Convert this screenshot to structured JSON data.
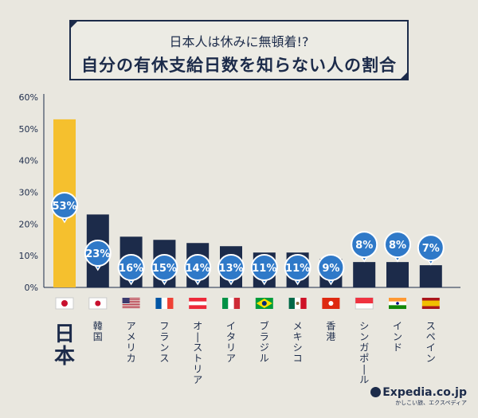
{
  "chart_data": {
    "type": "bar",
    "subtitle": "日本人は休みに無頓着!?",
    "title": "自分の有休支給日数を知らない人の割合",
    "categories": [
      "日本",
      "韓国",
      "アメリカ",
      "フランス",
      "オーストリア",
      "イタリア",
      "ブラジル",
      "メキシコ",
      "香港",
      "シンガポール",
      "インド",
      "スペイン"
    ],
    "values": [
      53,
      23,
      16,
      15,
      14,
      13,
      11,
      11,
      9,
      8,
      8,
      7
    ],
    "data_labels": [
      "53%",
      "23%",
      "16%",
      "15%",
      "14%",
      "13%",
      "11%",
      "11%",
      "9%",
      "8%",
      "8%",
      "7%"
    ],
    "flags": [
      "japan-flag",
      "south-korea-flag",
      "usa-flag",
      "france-flag",
      "austria-flag",
      "italy-flag",
      "brazil-flag",
      "mexico-flag",
      "hong-kong-flag",
      "singapore-flag",
      "india-flag",
      "spain-flag"
    ],
    "yticks": [
      "0%",
      "10%",
      "20%",
      "30%",
      "40%",
      "50%",
      "60%"
    ],
    "ylim": [
      0,
      60
    ],
    "grid": false,
    "colors": {
      "highlight": "#f5c02e",
      "bar": "#1c2b4a",
      "bubble": "#2f79c8",
      "background": "#e9e7df"
    }
  },
  "logo": {
    "brand": "Expedia.co.jp",
    "tagline": "かしこい旅、エクスペディア"
  }
}
